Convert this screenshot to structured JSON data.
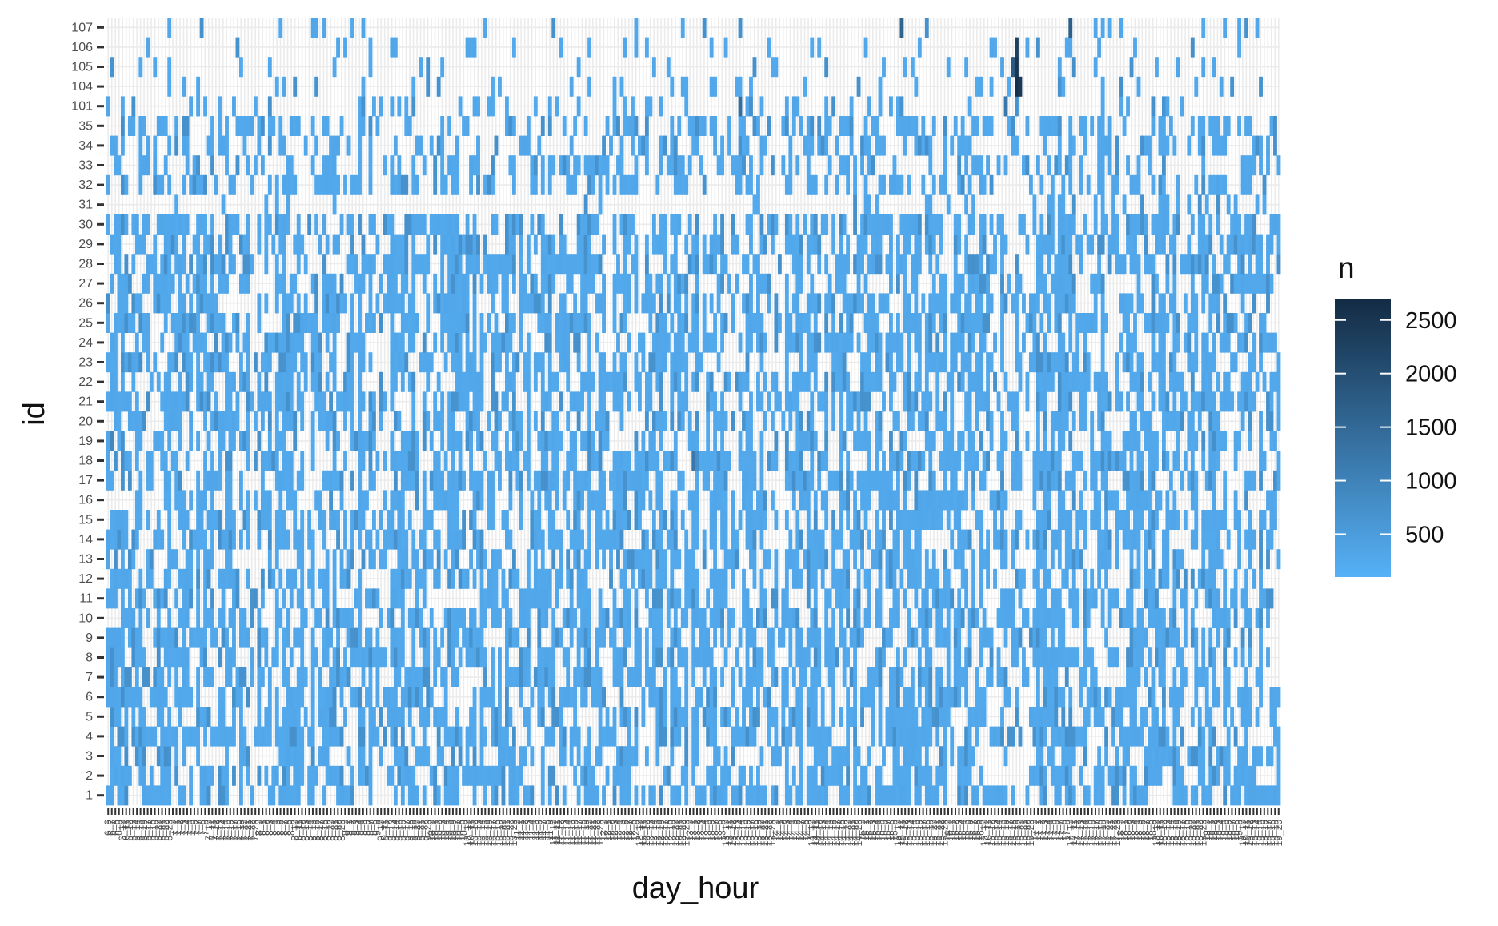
{
  "chart_data": {
    "type": "heatmap",
    "title": "",
    "xlabel": "day_hour",
    "ylabel": "id",
    "x_categories": [
      "6_6",
      "6_7",
      "6_8",
      "6_9",
      "6_10",
      "6_11",
      "6_12",
      "6_13",
      "6_14",
      "6_15",
      "6_16",
      "6_17",
      "6_18",
      "6_19",
      "6_20",
      "6_21",
      "6_22",
      "6_23",
      "7_0",
      "7_1",
      "7_2",
      "7_3",
      "7_4",
      "7_5",
      "7_6",
      "7_7",
      "7_8",
      "7_9",
      "7_10",
      "7_11",
      "7_12",
      "7_13",
      "7_14",
      "7_15",
      "7_16",
      "7_17",
      "7_18",
      "7_19",
      "7_20",
      "7_21",
      "7_22",
      "7_23",
      "8_0",
      "8_1",
      "8_2",
      "8_3",
      "8_4",
      "8_5",
      "8_6",
      "8_7",
      "8_8",
      "8_9",
      "8_10",
      "8_11",
      "8_12",
      "8_13",
      "8_14",
      "8_15",
      "8_16",
      "8_17",
      "8_18",
      "8_19",
      "8_20",
      "8_21",
      "8_22",
      "8_23",
      "9_0",
      "9_1",
      "9_2",
      "9_3",
      "9_4",
      "9_5",
      "9_6",
      "9_7",
      "9_8",
      "9_9",
      "9_10",
      "9_11",
      "9_12",
      "9_13",
      "9_14",
      "9_15",
      "9_16",
      "9_17",
      "9_18",
      "9_19",
      "9_20",
      "9_21",
      "9_22",
      "9_23",
      "10_0",
      "10_1",
      "10_2",
      "10_3",
      "10_4",
      "10_5",
      "10_6",
      "10_7",
      "10_8",
      "10_9",
      "10_10",
      "10_11",
      "10_12",
      "10_13",
      "10_14",
      "10_15",
      "10_16",
      "10_17",
      "10_18",
      "10_19",
      "10_20",
      "10_21",
      "10_22",
      "10_23",
      "11_0",
      "11_1",
      "11_2",
      "11_3",
      "11_4",
      "11_5",
      "11_6",
      "11_7",
      "11_8",
      "11_9",
      "11_10",
      "11_11",
      "11_12",
      "11_13",
      "11_14",
      "11_15",
      "11_16",
      "11_17",
      "11_18",
      "11_19",
      "11_20",
      "11_21",
      "11_22",
      "11_23",
      "12_0",
      "12_1",
      "12_2",
      "12_3",
      "12_4",
      "12_5",
      "12_6",
      "12_7",
      "12_8",
      "12_9",
      "12_10",
      "12_11",
      "12_12",
      "12_13",
      "12_14",
      "12_15",
      "12_16",
      "12_17",
      "12_18",
      "12_19",
      "12_20",
      "12_21",
      "12_22",
      "12_23",
      "13_0",
      "13_1",
      "13_2",
      "13_3",
      "13_4",
      "13_5",
      "13_6",
      "13_7",
      "13_8",
      "13_9",
      "13_10",
      "13_11",
      "13_12",
      "13_13",
      "13_14",
      "13_15",
      "13_16",
      "13_17",
      "13_18",
      "13_19",
      "13_20",
      "13_21",
      "13_22",
      "13_23",
      "14_0",
      "14_1",
      "14_2",
      "14_3",
      "14_4",
      "14_5",
      "14_6",
      "14_7",
      "14_8",
      "14_9",
      "14_10",
      "14_11",
      "14_12",
      "14_13",
      "14_14",
      "14_15",
      "14_16",
      "14_17",
      "14_18",
      "14_19",
      "14_20",
      "14_21",
      "14_22",
      "14_23",
      "15_0",
      "15_1",
      "15_2",
      "15_3",
      "15_4",
      "15_5",
      "15_6",
      "15_7",
      "15_8",
      "15_9",
      "15_10",
      "15_11",
      "15_12",
      "15_13",
      "15_14",
      "15_15",
      "15_16",
      "15_17",
      "15_18",
      "15_19",
      "15_20",
      "15_21",
      "15_22",
      "15_23",
      "16_0",
      "16_1",
      "16_2",
      "16_3",
      "16_4",
      "16_5",
      "16_6",
      "16_7",
      "16_8",
      "16_9",
      "16_10",
      "16_11",
      "16_12",
      "16_13",
      "16_14",
      "16_15",
      "16_16",
      "16_17",
      "16_18",
      "16_19",
      "16_20",
      "16_21",
      "16_22",
      "16_23",
      "17_0",
      "17_1",
      "17_2",
      "17_3",
      "17_4",
      "17_5",
      "17_6",
      "17_7",
      "17_8",
      "17_9",
      "17_10",
      "17_11",
      "17_12",
      "17_13",
      "17_14",
      "17_15",
      "17_16",
      "17_17",
      "17_18",
      "17_19",
      "17_20",
      "17_21",
      "17_22",
      "17_23",
      "18_0",
      "18_1",
      "18_2",
      "18_3",
      "18_4",
      "18_5",
      "18_6",
      "18_7",
      "18_8",
      "18_9",
      "18_10",
      "18_11",
      "18_12",
      "18_13",
      "18_14",
      "18_15",
      "18_16",
      "18_17",
      "18_18",
      "18_19",
      "18_20",
      "18_21",
      "18_22",
      "18_23",
      "19_0",
      "19_1",
      "19_2",
      "19_3",
      "19_4",
      "19_5",
      "19_6",
      "19_7",
      "19_8",
      "19_9",
      "19_10",
      "19_11",
      "19_12",
      "19_13",
      "19_14",
      "19_15",
      "19_16",
      "19_17",
      "19_18",
      "19_19",
      "19_20"
    ],
    "y_categories": [
      "1",
      "2",
      "3",
      "4",
      "5",
      "6",
      "7",
      "8",
      "9",
      "10",
      "11",
      "12",
      "13",
      "14",
      "15",
      "16",
      "17",
      "18",
      "19",
      "20",
      "21",
      "22",
      "23",
      "24",
      "25",
      "26",
      "27",
      "28",
      "29",
      "30",
      "31",
      "32",
      "33",
      "34",
      "35",
      "101",
      "104",
      "105",
      "106",
      "107"
    ],
    "legend": {
      "title": "n",
      "ticks": [
        500,
        1000,
        1500,
        2000,
        2500
      ],
      "range": [
        100,
        2700
      ],
      "low_color": "#56B1F7",
      "high_color": "#132B43",
      "position": "right"
    },
    "estimated_patterns": {
      "base_value": 250,
      "row_density": {
        "1": 0.55,
        "2": 0.55,
        "3": 0.55,
        "4": 0.55,
        "5": 0.55,
        "6": 0.55,
        "7": 0.55,
        "8": 0.55,
        "9": 0.55,
        "10": 0.55,
        "11": 0.55,
        "12": 0.55,
        "13": 0.55,
        "14": 0.55,
        "15": 0.55,
        "16": 0.55,
        "17": 0.55,
        "18": 0.55,
        "19": 0.55,
        "20": 0.55,
        "21": 0.55,
        "22": 0.55,
        "23": 0.55,
        "24": 0.55,
        "25": 0.55,
        "26": 0.55,
        "27": 0.55,
        "28": 0.55,
        "29": 0.55,
        "30": 0.55,
        "31": 0.03,
        "32": 0.38,
        "33": 0.38,
        "34": 0.38,
        "35": 0.38,
        "101": 0.2,
        "104": 0.16,
        "105": 0.16,
        "106": 0.14,
        "107": 0.12
      },
      "hotspots": [
        {
          "id": "104",
          "day_hour": "16_19",
          "n": 2600
        },
        {
          "id": "105",
          "day_hour": "16_19",
          "n": 2500
        },
        {
          "id": "106",
          "day_hour": "16_19",
          "n": 2300
        },
        {
          "id": "104",
          "day_hour": "16_20",
          "n": 2400
        },
        {
          "id": "105",
          "day_hour": "16_18",
          "n": 1800
        },
        {
          "id": "107",
          "day_hour": "17_10",
          "n": 1700
        },
        {
          "id": "107",
          "day_hour": "15_11",
          "n": 1600
        },
        {
          "id": "101",
          "day_hour": "13_14",
          "n": 1400
        },
        {
          "id": "101",
          "day_hour": "16_16",
          "n": 1200
        },
        {
          "id": "18",
          "day_hour": "13_1",
          "n": 1200
        },
        {
          "id": "19",
          "day_hour": "6_7",
          "n": 900
        }
      ]
    }
  }
}
